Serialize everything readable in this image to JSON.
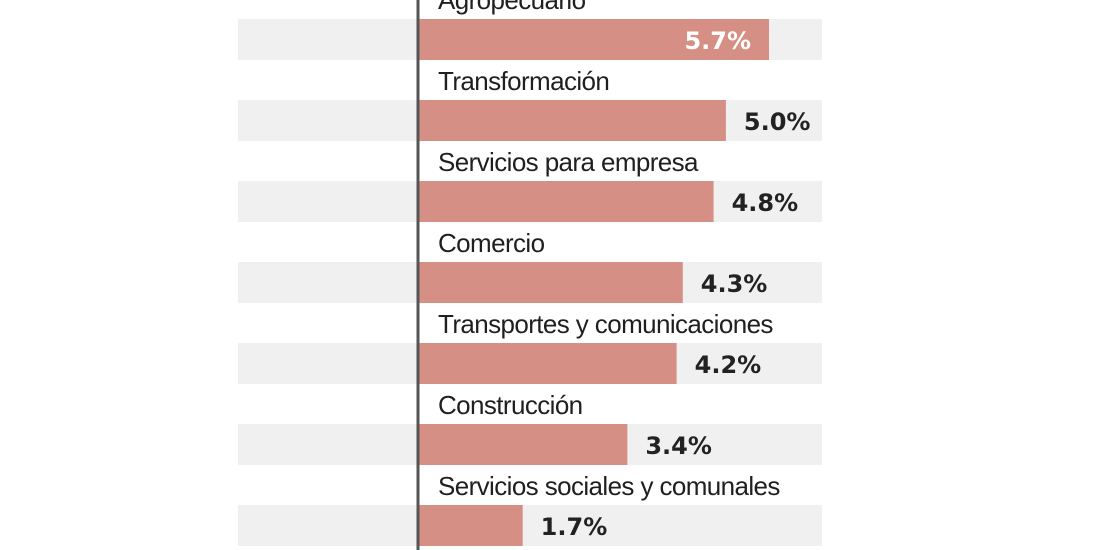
{
  "chart_data": {
    "type": "bar",
    "orientation": "horizontal",
    "categories": [
      "Agropecuario",
      "Transformación",
      "Servicios para empresa",
      "Comercio",
      "Transportes y comunicaciones",
      "Construcción",
      "Servicios sociales y comunales"
    ],
    "values": [
      5.7,
      5.0,
      4.8,
      4.3,
      4.2,
      3.4,
      1.7
    ],
    "value_labels": [
      "5.7%",
      "5.0%",
      "4.8%",
      "4.3%",
      "4.2%",
      "3.4%",
      "1.7%"
    ],
    "xlim": [
      0,
      9.5
    ],
    "title": "",
    "xlabel": "",
    "ylabel": "",
    "grid": false,
    "colors": {
      "bar": "#d68f84",
      "band": "#f0f0f1",
      "axis": "#555555"
    }
  }
}
